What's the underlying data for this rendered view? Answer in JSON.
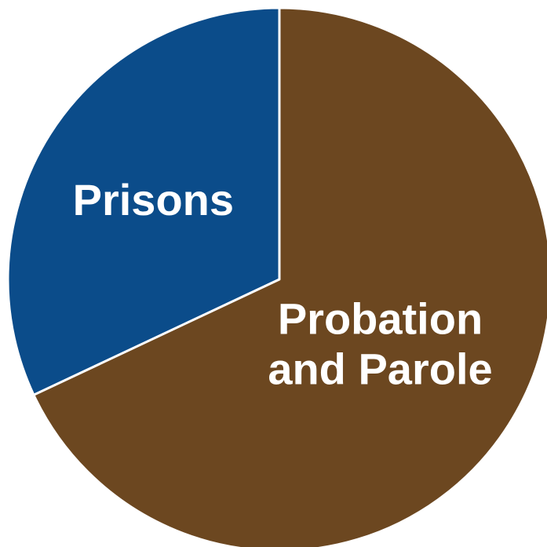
{
  "chart_data": {
    "type": "pie",
    "title": "",
    "slices": [
      {
        "label": "Prisons",
        "label_lines": [
          "Prisons"
        ],
        "value": 32,
        "color": "#0b4c8a"
      },
      {
        "label": "Probation and Parole",
        "label_lines": [
          "Probation",
          "and Parole"
        ],
        "value": 68,
        "color": "#6c4720"
      }
    ],
    "start": "12 o'clock",
    "direction": "counterclockwise",
    "legend": "none",
    "labels": "on-slice"
  }
}
